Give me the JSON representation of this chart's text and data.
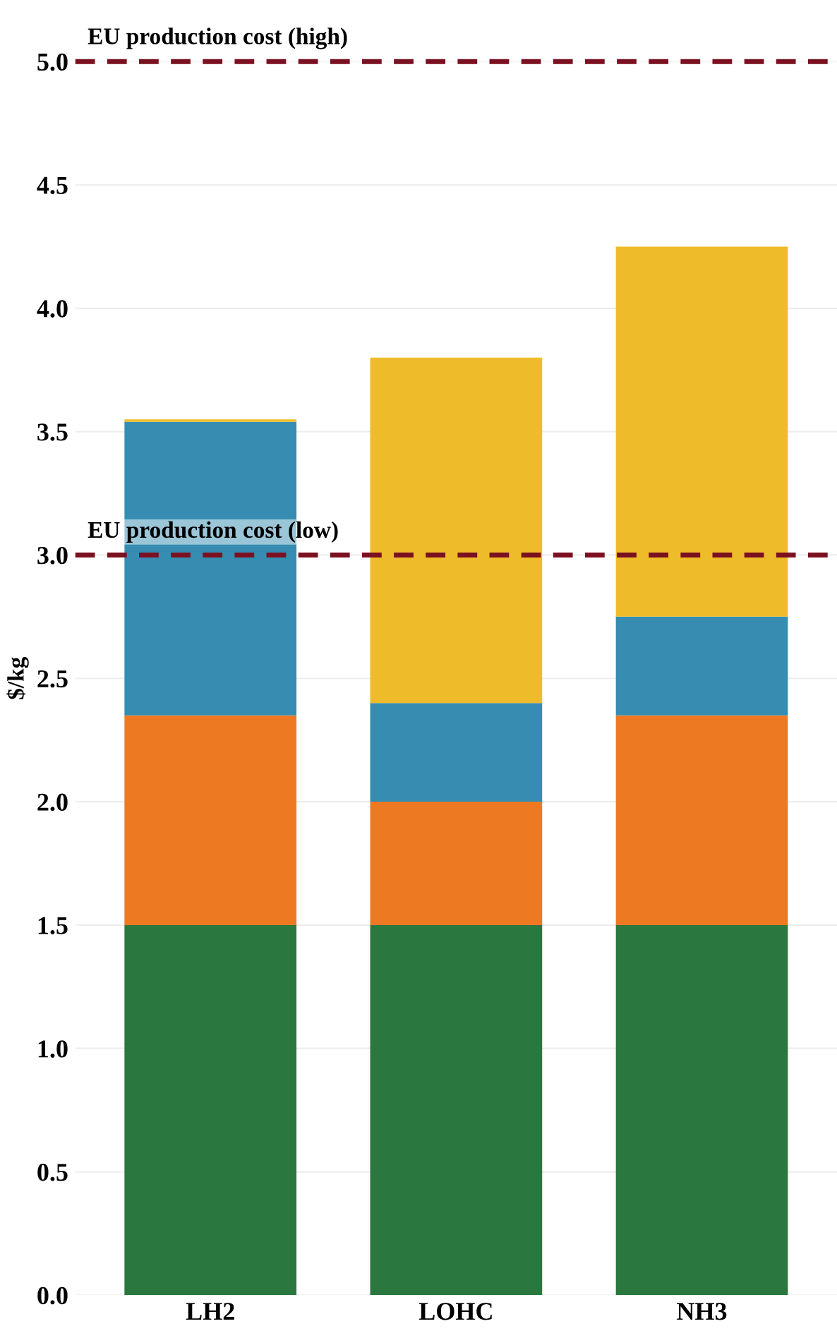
{
  "chart_data": {
    "type": "bar",
    "stacked": true,
    "ylabel": "$/kg",
    "categories": [
      "LH2",
      "LOHC",
      "NH3"
    ],
    "series": [
      {
        "color": "#2a773f",
        "values": [
          1.5,
          1.5,
          1.5
        ]
      },
      {
        "color": "#ee7923",
        "values": [
          0.85,
          0.5,
          0.85
        ]
      },
      {
        "color": "#368db1",
        "values": [
          1.19,
          0.4,
          0.4
        ]
      },
      {
        "color": "#eebc2b",
        "values": [
          0.01,
          1.4,
          1.5
        ]
      }
    ],
    "ylim": [
      0,
      5.0
    ],
    "yticks": [
      {
        "value": 0,
        "label": "0.0"
      },
      {
        "value": 0.5,
        "label": "0.5"
      },
      {
        "value": 1,
        "label": "1.0"
      },
      {
        "value": 1.5,
        "label": "1.5"
      },
      {
        "value": 2,
        "label": "2.0"
      },
      {
        "value": 2.5,
        "label": "2.5"
      },
      {
        "value": 3,
        "label": "3.0"
      },
      {
        "value": 3.5,
        "label": "3.5"
      },
      {
        "value": 4,
        "label": "4.0"
      },
      {
        "value": 4.5,
        "label": "4.5"
      },
      {
        "value": 5,
        "label": "5.0"
      }
    ],
    "grid": "y",
    "ref_lines": [
      {
        "axis": "y",
        "value": 5.0,
        "label": "EU production cost (high)",
        "color": "#7a1020",
        "line_style": "dashed"
      },
      {
        "axis": "y",
        "value": 3.0,
        "label": "EU production cost (low)",
        "color": "#7a1020",
        "line_style": "dashed"
      }
    ]
  }
}
